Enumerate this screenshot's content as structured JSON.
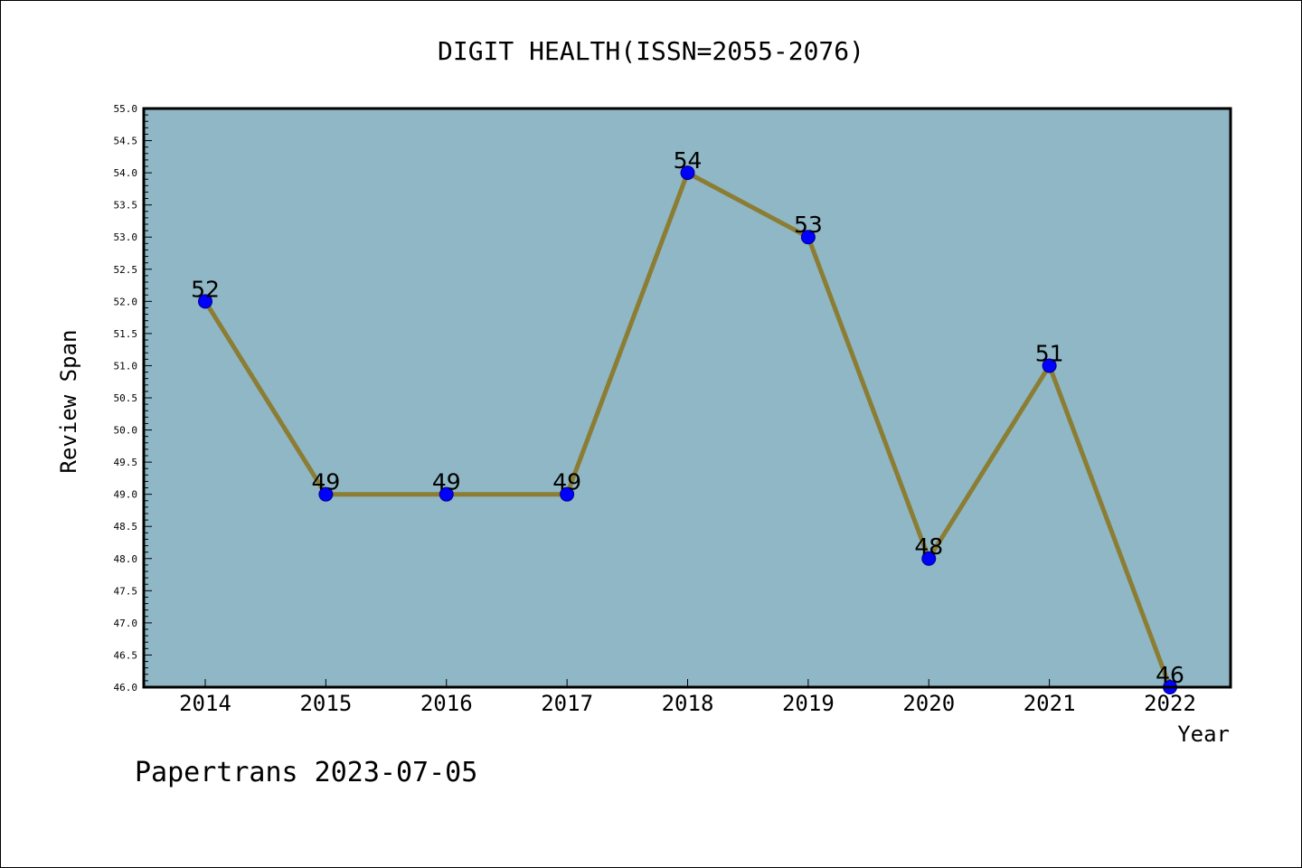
{
  "chart_data": {
    "type": "line",
    "title": "DIGIT HEALTH(ISSN=2055-2076)",
    "xlabel": "Year",
    "ylabel": "Review Span",
    "categories": [
      "2014",
      "2015",
      "2016",
      "2017",
      "2018",
      "2019",
      "2020",
      "2021",
      "2022"
    ],
    "values": [
      52,
      49,
      49,
      49,
      54,
      53,
      48,
      51,
      46
    ],
    "data_labels": [
      "52",
      "49",
      "49",
      "49",
      "54",
      "53",
      "48",
      "51",
      "46"
    ],
    "ylim": [
      46.0,
      55.0
    ],
    "y_ticks": [
      "46.0",
      "46.5",
      "47.0",
      "47.5",
      "48.0",
      "48.5",
      "49.0",
      "49.5",
      "50.0",
      "50.5",
      "51.0",
      "51.5",
      "52.0",
      "52.5",
      "53.0",
      "53.5",
      "54.0",
      "54.5",
      "55.0"
    ],
    "grid": false,
    "legend": "none",
    "colors": {
      "plot_background": "#8fb7c5",
      "line": "#8b7d33",
      "marker_fill": "#0000ff",
      "marker_edge": "#00008b"
    }
  },
  "footer": {
    "text": "Papertrans 2023-07-05"
  }
}
